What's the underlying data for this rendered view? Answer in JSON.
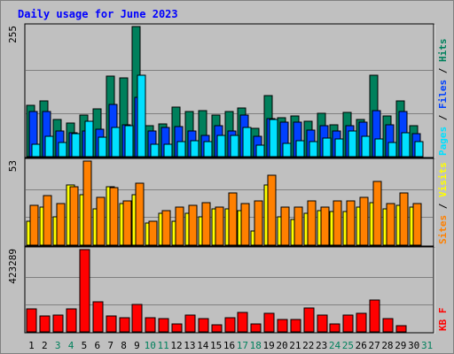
{
  "chart_data": {
    "type": "bar",
    "title": "Daily usage for June 2023",
    "categories": [
      "1",
      "2",
      "3",
      "4",
      "5",
      "6",
      "7",
      "8",
      "9",
      "10",
      "11",
      "12",
      "13",
      "14",
      "15",
      "16",
      "17",
      "18",
      "19",
      "20",
      "21",
      "22",
      "23",
      "24",
      "25",
      "26",
      "27",
      "28",
      "29",
      "30",
      "31"
    ],
    "weekend_days": [
      "3",
      "4",
      "10",
      "11",
      "17",
      "18",
      "24",
      "25",
      "31"
    ],
    "panels": [
      {
        "id": "top",
        "max_label": "255",
        "ylim": [
          0,
          255
        ],
        "side_label": [
          {
            "text": "Pages",
            "color": "#00e0ff"
          },
          {
            "text": " / ",
            "color": "#000000"
          },
          {
            "text": "Files",
            "color": "#0040ff"
          },
          {
            "text": " / ",
            "color": "#000000"
          },
          {
            "text": "Hits",
            "color": "#00805c"
          }
        ],
        "series": [
          {
            "key": "hits",
            "color": "#00805c",
            "values": [
              100,
              110,
              72,
              66,
              82,
              93,
              157,
              155,
              255,
              60,
              65,
              97,
              88,
              90,
              82,
              88,
              96,
              55,
              120,
              77,
              80,
              70,
              85,
              62,
              87,
              72,
              160,
              79,
              110,
              60
            ]
          },
          {
            "key": "files",
            "color": "#0040ff",
            "values": [
              88,
              88,
              50,
              46,
              50,
              54,
              102,
              63,
              116,
              50,
              58,
              59,
              50,
              42,
              60,
              51,
              81,
              40,
              75,
              68,
              67,
              52,
              61,
              50,
              60,
              67,
              90,
              62,
              88,
              45
            ]
          },
          {
            "key": "pages",
            "color": "#00e0ff",
            "values": [
              25,
              40,
              27,
              45,
              70,
              38,
              58,
              60,
              160,
              24,
              25,
              30,
              32,
              30,
              42,
              42,
              58,
              22,
              72,
              26,
              32,
              29,
              36,
              34,
              50,
              40,
              35,
              28,
              46,
              30
            ]
          }
        ]
      },
      {
        "id": "mid",
        "max_label": "53",
        "ylim": [
          0,
          53
        ],
        "side_label": [
          {
            "text": "Sites",
            "color": "#ff8000"
          },
          {
            "text": " / ",
            "color": "#000000"
          },
          {
            "text": "Visits",
            "color": "#ffff00"
          }
        ],
        "series": [
          {
            "key": "visits",
            "color": "#ffff00",
            "values": [
              15,
              24,
              18,
              38,
              32,
              23,
              37,
              26,
              32,
              14,
              20,
              15,
              20,
              18,
              23,
              23,
              22,
              9,
              38,
              18,
              16,
              20,
              22,
              21,
              21,
              24,
              27,
              23,
              25,
              24
            ]
          },
          {
            "key": "sites",
            "color": "#ff8000",
            "values": [
              25,
              31,
              26,
              37,
              53,
              30,
              36,
              28,
              39,
              15,
              22,
              24,
              25,
              27,
              24,
              33,
              26,
              28,
              44,
              24,
              24,
              28,
              24,
              28,
              28,
              30,
              40,
              26,
              33,
              26
            ]
          }
        ]
      },
      {
        "id": "bottom",
        "max_label": "423289",
        "ylim": [
          0,
          423289
        ],
        "side_label": [
          {
            "text": "KB F",
            "color": "#ff0000"
          }
        ],
        "series": [
          {
            "key": "kbytes",
            "color": "#ff0000",
            "values": [
              119000,
              84000,
              86000,
              117000,
              423289,
              155000,
              80000,
              74000,
              143000,
              71000,
              68000,
              39000,
              88000,
              66000,
              37000,
              75000,
              99000,
              40000,
              95000,
              63000,
              64000,
              124000,
              87000,
              43000,
              86000,
              95000,
              163000,
              67000,
              34000,
              0
            ]
          }
        ]
      }
    ]
  }
}
